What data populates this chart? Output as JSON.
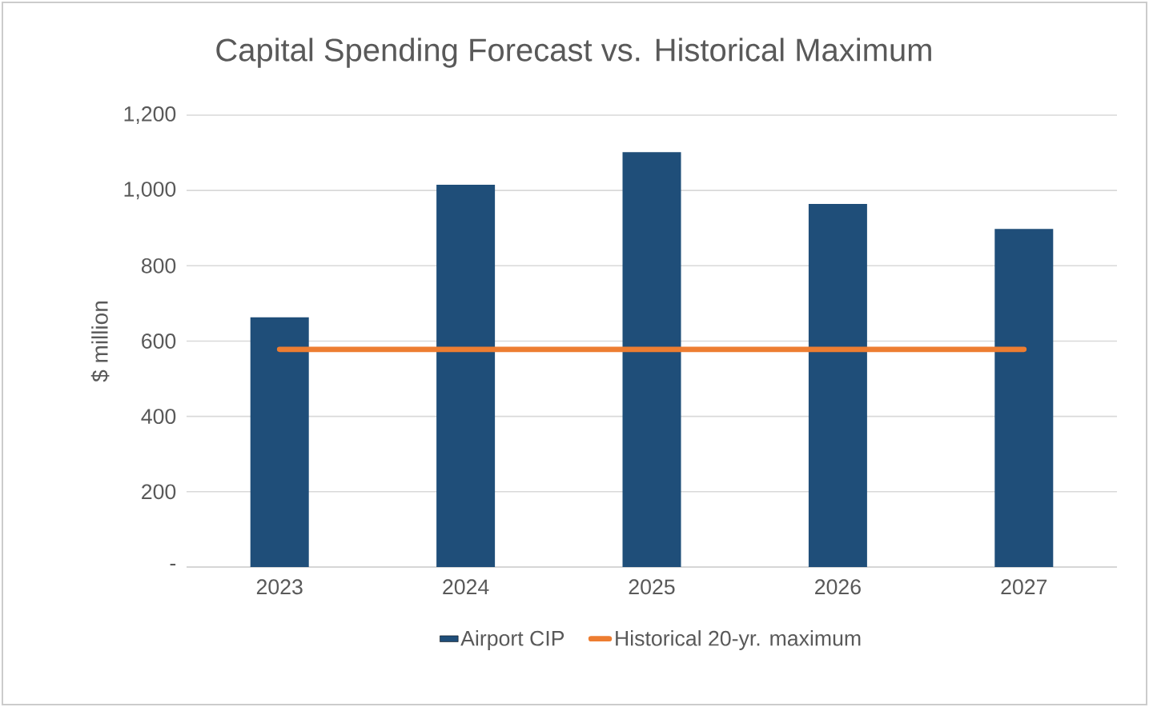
{
  "chart_data": {
    "type": "bar",
    "title": "Capital Spending Forecast vs. Historical Maximum",
    "ylabel": "$ million",
    "categories": [
      "2023",
      "2024",
      "2025",
      "2026",
      "2027"
    ],
    "series": [
      {
        "name": "Airport CIP",
        "color": "#1f4e79",
        "values": [
          663,
          1015,
          1102,
          964,
          898
        ]
      },
      {
        "name": "Historical 20-yr. maximum",
        "type": "line",
        "color": "#ed7d31",
        "values": [
          578,
          578,
          578,
          578,
          578
        ]
      }
    ],
    "ylim": [
      0,
      1200
    ],
    "yticks": [
      {
        "value": 0,
        "label": "-"
      },
      200,
      400,
      600,
      800,
      {
        "value": 1000,
        "label": "1,000"
      },
      {
        "value": 1200,
        "label": "1,200"
      }
    ],
    "grid": "y",
    "legend": "bottom"
  }
}
